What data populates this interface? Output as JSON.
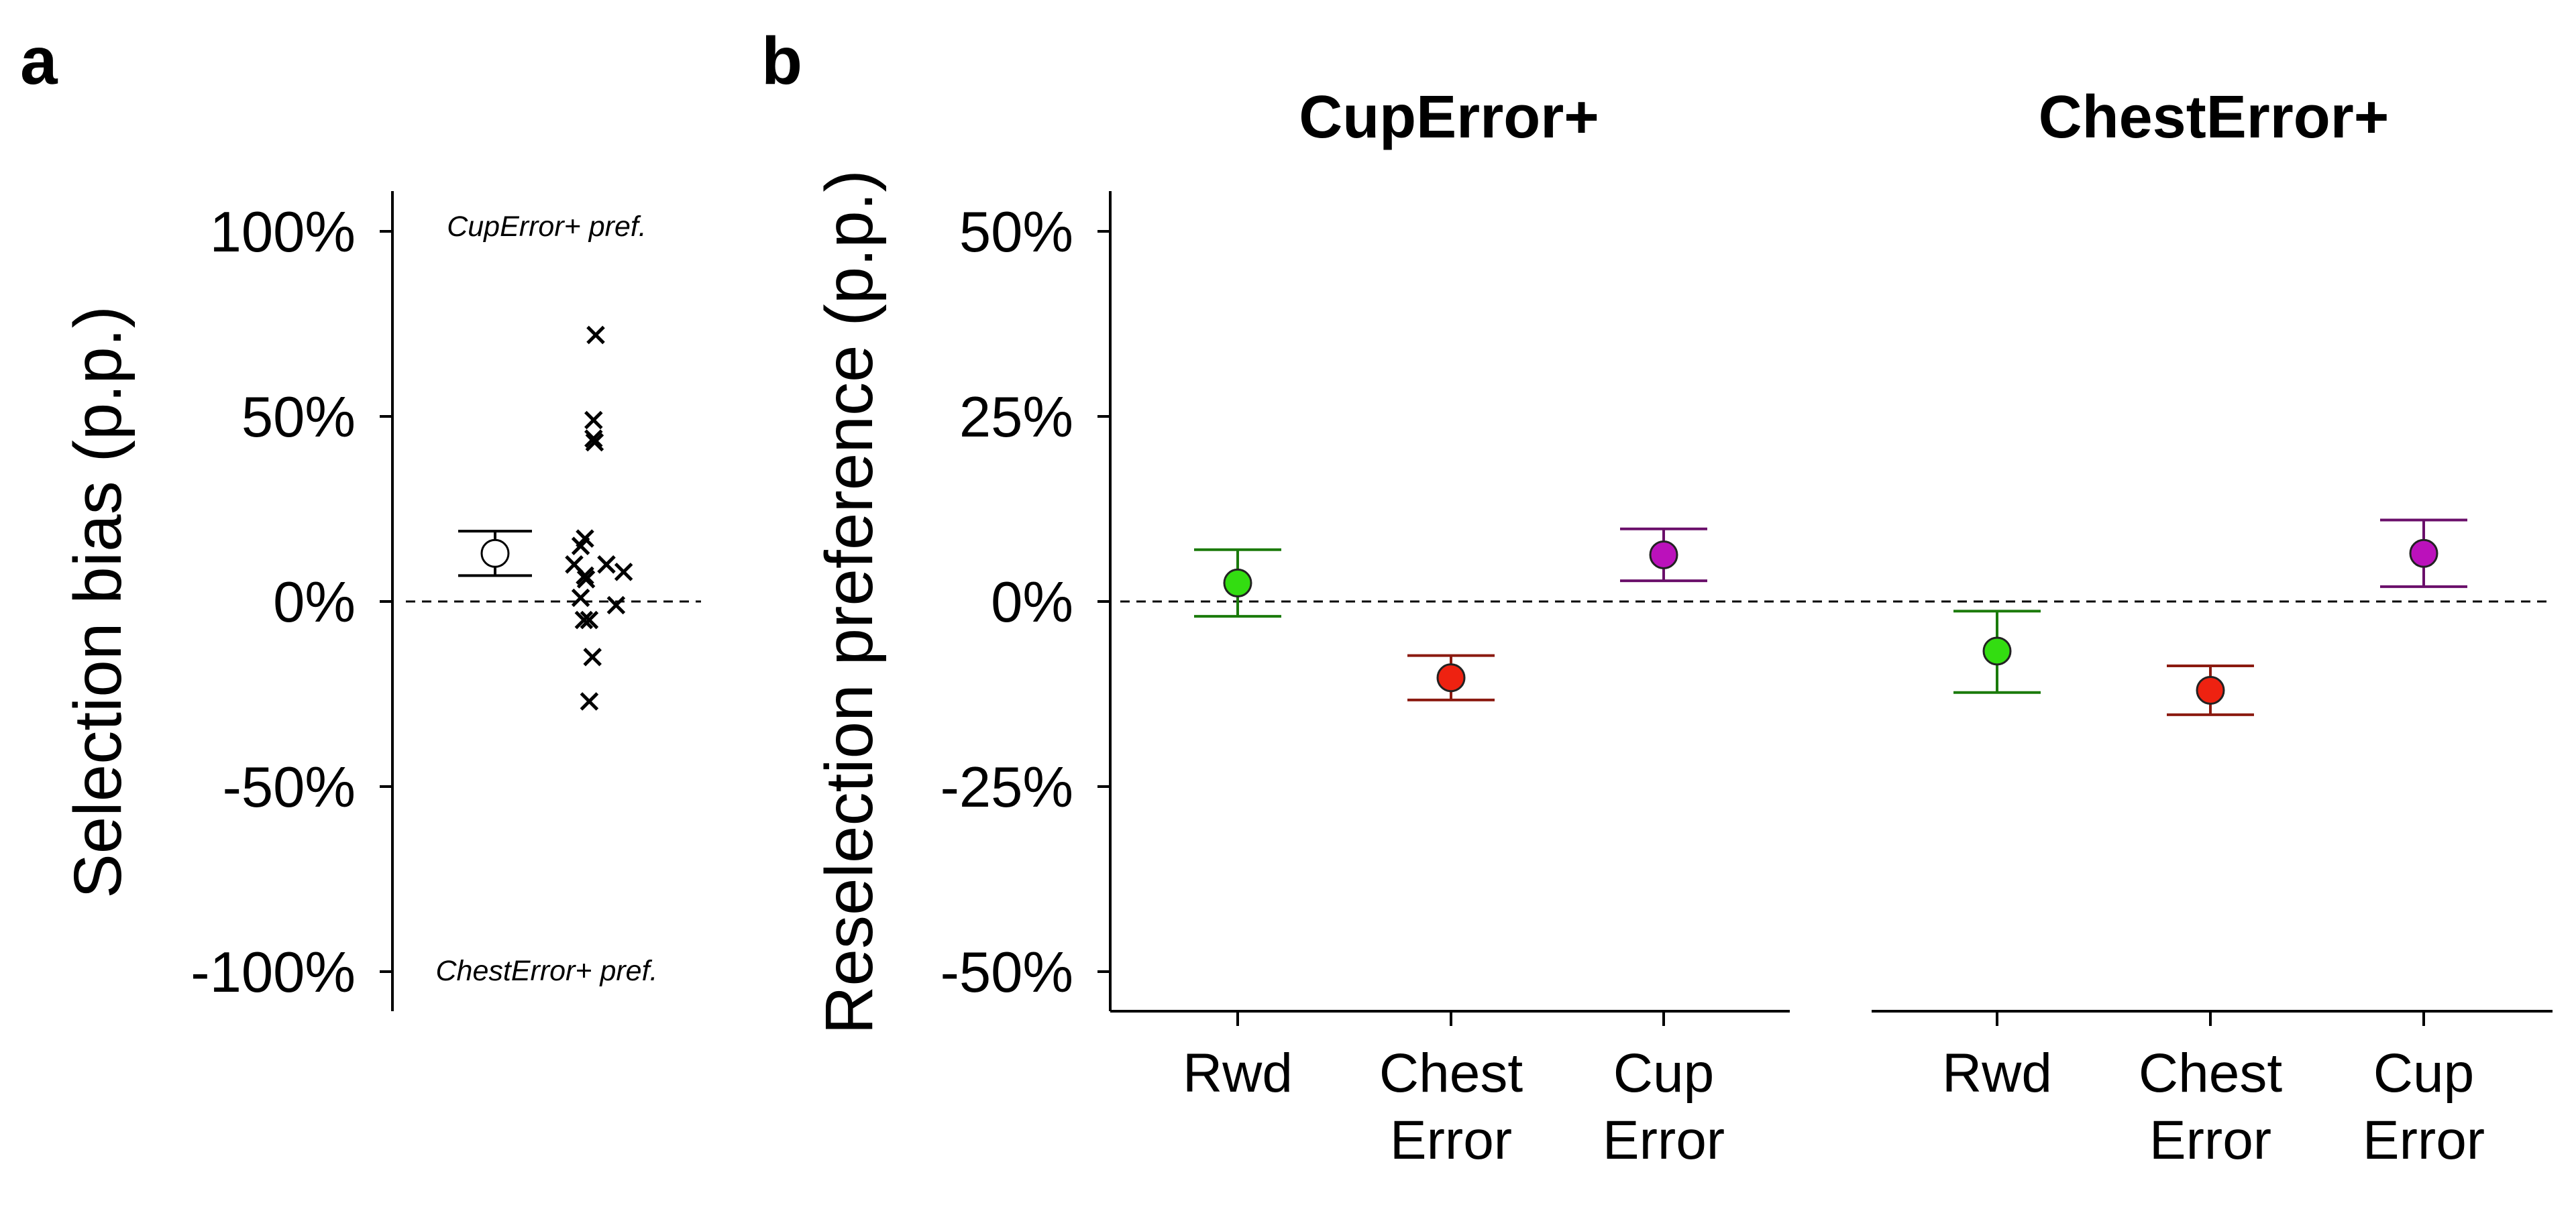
{
  "panels": {
    "a": {
      "letter": "a",
      "ylabel": "Selection bias (p.p.)",
      "note_top": "CupError+ pref.",
      "note_bottom": "ChestError+ pref.",
      "yticks": [
        "100%",
        "50%",
        "0%",
        "-50%",
        "-100%"
      ]
    },
    "b": {
      "letter": "b",
      "ylabel": "Reselection preference (p.p.)",
      "yticks": [
        "50%",
        "25%",
        "0%",
        "-25%",
        "-50%"
      ]
    }
  },
  "chart_data": [
    {
      "panel": "a",
      "type": "scatter",
      "title": "",
      "xlabel": "",
      "ylabel": "Selection bias (p.p.)",
      "ylim": [
        -110,
        110
      ],
      "yunit": "%",
      "grid": false,
      "reference_line": 0,
      "summary": {
        "mean": 13,
        "err_low": 7,
        "err_high": 19,
        "marker": "open circle"
      },
      "points": [
        {
          "x": 1,
          "y": 72
        },
        {
          "x": 0.8,
          "y": 49
        },
        {
          "x": 0.8,
          "y": 44
        },
        {
          "x": 0.9,
          "y": 43
        },
        {
          "x": 0,
          "y": 17
        },
        {
          "x": -0.4,
          "y": 15
        },
        {
          "x": -1.0,
          "y": 10
        },
        {
          "x": 2.0,
          "y": 10
        },
        {
          "x": 3.6,
          "y": 8
        },
        {
          "x": 0,
          "y": 7
        },
        {
          "x": 0.1,
          "y": 6
        },
        {
          "x": -0.4,
          "y": 1
        },
        {
          "x": 2.9,
          "y": -1
        },
        {
          "x": -0.1,
          "y": -5
        },
        {
          "x": 0.4,
          "y": -5
        },
        {
          "x": 0.7,
          "y": -15
        },
        {
          "x": 0.4,
          "y": -27
        }
      ]
    },
    {
      "panel": "b",
      "type": "scatter",
      "title": "CupError+",
      "xlabel": "",
      "ylabel": "Reselection preference (p.p.)",
      "categories": [
        "Rwd",
        "Chest Error",
        "Cup Error"
      ],
      "ylim": [
        -55,
        55
      ],
      "yunit": "%",
      "grid": false,
      "reference_line": 0,
      "series": [
        {
          "category": "Rwd",
          "mean": 2.5,
          "err_low": -2,
          "err_high": 7,
          "color": "#33dd11",
          "edge": "#1a7a0a"
        },
        {
          "category": "Chest Error",
          "mean": -10.3,
          "err_low": -13.3,
          "err_high": -7.3,
          "color": "#ee2211",
          "edge": "#8b1a10"
        },
        {
          "category": "Cup Error",
          "mean": 6.3,
          "err_low": 2.8,
          "err_high": 9.8,
          "color": "#bb11bb",
          "edge": "#6a0f6a"
        }
      ]
    },
    {
      "panel": "b",
      "type": "scatter",
      "title": "ChestError+",
      "xlabel": "",
      "ylabel": "",
      "categories": [
        "Rwd",
        "Chest Error",
        "Cup Error"
      ],
      "ylim": [
        -55,
        55
      ],
      "yunit": "%",
      "grid": false,
      "reference_line": 0,
      "series": [
        {
          "category": "Rwd",
          "mean": -6.7,
          "err_low": -12.3,
          "err_high": -1.3,
          "color": "#33dd11",
          "edge": "#1a7a0a"
        },
        {
          "category": "Chest Error",
          "mean": -12,
          "err_low": -15.3,
          "err_high": -8.7,
          "color": "#ee2211",
          "edge": "#8b1a10"
        },
        {
          "category": "Cup Error",
          "mean": 6.5,
          "err_low": 2,
          "err_high": 11,
          "color": "#bb11bb",
          "edge": "#6a0f6a"
        }
      ]
    }
  ]
}
